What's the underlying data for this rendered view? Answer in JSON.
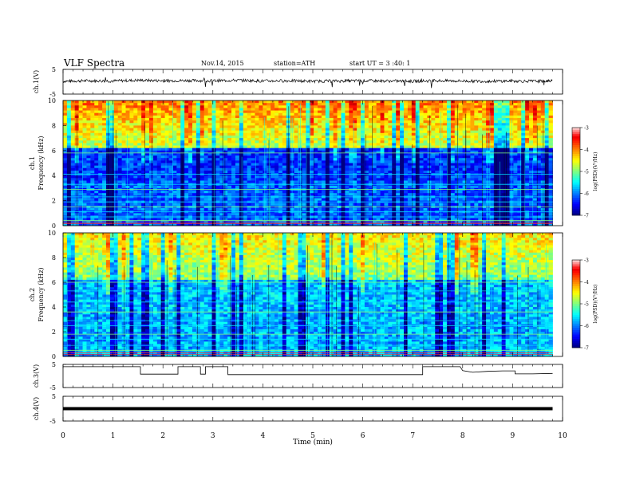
{
  "header": {
    "title": "VLF  Spectra",
    "date": "Nov.14, 2015",
    "station": "station=ATH",
    "start": "start  UT  =  3 :40: 1"
  },
  "chart_data": [
    {
      "type": "line",
      "panel": "ch1-waveform",
      "ylabel": "ch.1(V)",
      "ylim": [
        -5,
        5
      ],
      "yticks": [
        "5",
        "-5"
      ],
      "xlim": [
        0,
        10
      ],
      "x": [
        0.0,
        0.5,
        1.0,
        1.5,
        2.0,
        2.5,
        3.0,
        3.5,
        4.0,
        4.5,
        5.0,
        5.5,
        6.0,
        6.5,
        7.0,
        7.5,
        8.0,
        8.5,
        9.0,
        9.5,
        9.8
      ],
      "y": [
        0.2,
        0.4,
        0.3,
        0.6,
        0.4,
        0.5,
        0.4,
        0.6,
        0.3,
        0.4,
        0.2,
        0.3,
        0.4,
        0.3,
        0.2,
        0.4,
        0.3,
        0.2,
        0.3,
        0.2,
        0.3
      ]
    },
    {
      "type": "heatmap",
      "panel": "ch1-spectrogram",
      "ylabel": "ch.1\nFrequency  (kHz)",
      "ylim": [
        0,
        10
      ],
      "yticks": [
        "0",
        "2",
        "4",
        "6",
        "8",
        "10"
      ],
      "xlim": [
        0,
        9.8
      ],
      "colorbar": {
        "label": "log(PSD)(V²/Hz)",
        "range": [
          -7,
          -3
        ],
        "ticks": [
          "-3",
          "-4",
          "-5",
          "-6",
          "-7"
        ]
      }
    },
    {
      "type": "heatmap",
      "panel": "ch2-spectrogram",
      "ylabel": "ch.2\nFrequency  (kHz)",
      "ylim": [
        0,
        10
      ],
      "yticks": [
        "0",
        "2",
        "4",
        "6",
        "8",
        "10"
      ],
      "xlim": [
        0,
        9.8
      ],
      "colorbar": {
        "label": "log(PSD)(V²/Hz)",
        "range": [
          -7,
          -3
        ],
        "ticks": [
          "-3",
          "-4",
          "-5",
          "-6",
          "-7"
        ]
      }
    },
    {
      "type": "line",
      "panel": "ch3-waveform",
      "ylabel": "ch.3(V)",
      "ylim": [
        -5,
        5
      ],
      "yticks": [
        "5",
        "-5"
      ],
      "xlim": [
        0,
        10
      ],
      "x": [
        0,
        1.55,
        1.55,
        2.3,
        2.3,
        2.75,
        2.75,
        2.85,
        2.85,
        3.3,
        3.3,
        7.2,
        7.2,
        7.95,
        8.0,
        8.2,
        8.5,
        8.8,
        9.05,
        9.05,
        9.4,
        9.8
      ],
      "y": [
        4.0,
        4.0,
        0.8,
        0.8,
        4.0,
        4.0,
        0.8,
        0.8,
        4.0,
        4.0,
        0.6,
        0.6,
        4.0,
        4.0,
        2.3,
        1.6,
        2.0,
        2.2,
        2.2,
        0.9,
        0.9,
        1.1
      ]
    },
    {
      "type": "line",
      "panel": "ch4-waveform",
      "ylabel": "ch.4(V)",
      "ylim": [
        -5,
        5
      ],
      "yticks": [
        "5",
        "-5"
      ],
      "xlim": [
        0,
        10
      ],
      "x": [
        0,
        9.8
      ],
      "y": [
        0.0,
        0.0
      ]
    }
  ],
  "xaxis": {
    "label": "Time  (min)",
    "ticks": [
      "0",
      "1",
      "2",
      "3",
      "4",
      "5",
      "6",
      "7",
      "8",
      "9",
      "10"
    ]
  }
}
